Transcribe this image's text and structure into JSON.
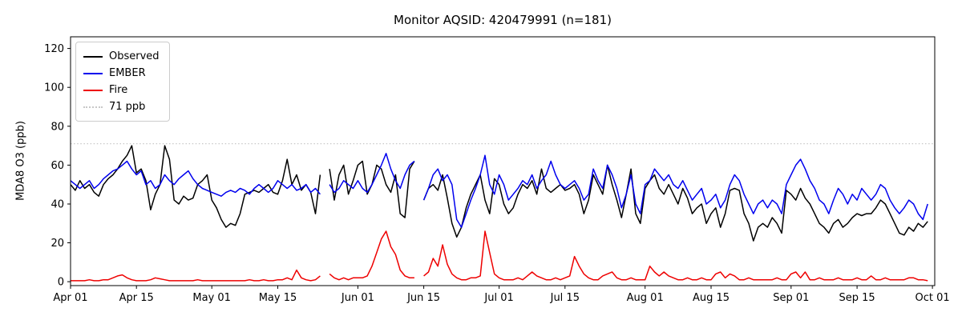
{
  "chart_data": {
    "type": "line",
    "title": "Monitor AQSID: 420479991 (n=181)",
    "xlabel": "",
    "ylabel": "MDA8 O3 (ppb)",
    "ylim": [
      -2,
      126
    ],
    "yticks": [
      0,
      20,
      40,
      60,
      80,
      100,
      120
    ],
    "xlim_days": [
      0,
      183.5
    ],
    "x_description": "daily values, day 0 = Apr 01, day 183 = Oct 01; nulls are missing days (n=181)",
    "xticks": [
      {
        "day": 0,
        "label": "Apr 01"
      },
      {
        "day": 14,
        "label": "Apr 15"
      },
      {
        "day": 30,
        "label": "May 01"
      },
      {
        "day": 44,
        "label": "May 15"
      },
      {
        "day": 61,
        "label": "Jun 01"
      },
      {
        "day": 75,
        "label": "Jun 15"
      },
      {
        "day": 91,
        "label": "Jul 01"
      },
      {
        "day": 105,
        "label": "Jul 15"
      },
      {
        "day": 122,
        "label": "Aug 01"
      },
      {
        "day": 136,
        "label": "Aug 15"
      },
      {
        "day": 153,
        "label": "Sep 01"
      },
      {
        "day": 167,
        "label": "Sep 15"
      },
      {
        "day": 183,
        "label": "Oct 01"
      }
    ],
    "reference_line": {
      "value": 71,
      "label": "71 ppb",
      "color": "#c8c8c8",
      "style": "dotted"
    },
    "grid": "off",
    "legend_position": "upper-left",
    "legend": [
      {
        "label": "Observed",
        "color": "#000000",
        "style": "solid"
      },
      {
        "label": "EMBER",
        "color": "#0000ee",
        "style": "solid"
      },
      {
        "label": "Fire",
        "color": "#ee0000",
        "style": "solid"
      },
      {
        "label": "71 ppb",
        "color": "#c8c8c8",
        "style": "dotted"
      }
    ],
    "series": [
      {
        "name": "Observed",
        "color": "#000000",
        "values": [
          50,
          47,
          52,
          48,
          50,
          46,
          44,
          50,
          53,
          55,
          58,
          62,
          65,
          70,
          56,
          58,
          52,
          37,
          45,
          50,
          70,
          63,
          42,
          40,
          44,
          42,
          43,
          50,
          52,
          55,
          42,
          38,
          32,
          28,
          30,
          29,
          35,
          45,
          46,
          47,
          46,
          48,
          50,
          46,
          45,
          52,
          63,
          50,
          55,
          47,
          50,
          46,
          35,
          55,
          null,
          58,
          42,
          55,
          60,
          45,
          52,
          60,
          62,
          45,
          50,
          60,
          58,
          50,
          46,
          55,
          35,
          33,
          58,
          62,
          null,
          42,
          48,
          50,
          47,
          55,
          43,
          30,
          23,
          28,
          38,
          45,
          50,
          55,
          42,
          35,
          53,
          50,
          40,
          35,
          38,
          45,
          50,
          48,
          52,
          45,
          58,
          48,
          46,
          48,
          50,
          47,
          48,
          50,
          45,
          35,
          42,
          55,
          50,
          45,
          60,
          50,
          42,
          33,
          45,
          58,
          35,
          30,
          48,
          52,
          55,
          48,
          45,
          50,
          45,
          40,
          48,
          43,
          35,
          38,
          40,
          30,
          35,
          38,
          28,
          35,
          47,
          48,
          47,
          35,
          30,
          21,
          28,
          30,
          28,
          33,
          30,
          25,
          47,
          45,
          42,
          48,
          43,
          40,
          35,
          30,
          28,
          25,
          30,
          32,
          28,
          30,
          33,
          35,
          34,
          35,
          35,
          38,
          42,
          40,
          35,
          30,
          25,
          24,
          28,
          26,
          30,
          28,
          31
        ]
      },
      {
        "name": "EMBER",
        "color": "#0000ee",
        "values": [
          52,
          50,
          48,
          50,
          52,
          48,
          50,
          53,
          55,
          57,
          58,
          60,
          62,
          58,
          55,
          57,
          50,
          52,
          48,
          50,
          55,
          52,
          50,
          53,
          55,
          57,
          53,
          50,
          48,
          47,
          46,
          45,
          44,
          46,
          47,
          46,
          48,
          47,
          45,
          48,
          50,
          48,
          46,
          48,
          52,
          50,
          48,
          50,
          47,
          48,
          50,
          46,
          48,
          45,
          null,
          50,
          46,
          48,
          52,
          50,
          48,
          52,
          48,
          46,
          50,
          55,
          60,
          66,
          58,
          52,
          48,
          55,
          60,
          62,
          null,
          42,
          48,
          55,
          58,
          52,
          55,
          50,
          32,
          28,
          35,
          42,
          48,
          55,
          65,
          50,
          45,
          55,
          50,
          42,
          45,
          48,
          52,
          50,
          55,
          48,
          52,
          55,
          62,
          55,
          50,
          48,
          50,
          52,
          48,
          42,
          45,
          58,
          52,
          48,
          60,
          55,
          48,
          38,
          45,
          55,
          40,
          35,
          50,
          52,
          58,
          55,
          52,
          55,
          50,
          48,
          52,
          47,
          42,
          45,
          48,
          40,
          42,
          45,
          38,
          42,
          50,
          55,
          52,
          45,
          40,
          35,
          40,
          42,
          38,
          42,
          40,
          35,
          50,
          55,
          60,
          63,
          58,
          52,
          48,
          42,
          40,
          35,
          42,
          48,
          45,
          40,
          45,
          42,
          48,
          45,
          42,
          45,
          50,
          48,
          42,
          38,
          35,
          38,
          42,
          40,
          35,
          32,
          40
        ]
      },
      {
        "name": "Fire",
        "color": "#ee0000",
        "values": [
          0.5,
          0.5,
          0.5,
          0.5,
          1,
          0.5,
          0.5,
          1,
          1,
          2,
          3,
          3.5,
          2,
          1,
          0.5,
          0.5,
          0.5,
          1,
          2,
          1.5,
          1,
          0.5,
          0.5,
          0.5,
          0.5,
          0.5,
          0.5,
          1,
          0.5,
          0.5,
          0.5,
          0.5,
          0.5,
          0.5,
          0.5,
          0.5,
          0.5,
          0.5,
          1,
          0.5,
          0.5,
          1,
          0.5,
          0.5,
          1,
          1,
          2,
          1,
          6,
          2,
          1,
          0.5,
          1,
          3,
          null,
          4,
          2,
          1,
          2,
          1,
          2,
          2,
          2,
          3,
          8,
          15,
          22,
          26,
          18,
          14,
          6,
          3,
          2,
          2,
          null,
          3,
          5,
          12,
          8,
          19,
          9,
          4,
          2,
          1,
          1,
          2,
          2,
          3,
          26,
          15,
          4,
          2,
          1,
          1,
          1,
          2,
          1,
          3,
          5,
          3,
          2,
          1,
          1,
          2,
          1,
          2,
          3,
          13,
          8,
          4,
          2,
          1,
          1,
          3,
          4,
          5,
          2,
          1,
          1,
          2,
          1,
          1,
          1,
          8,
          5,
          3,
          5,
          3,
          2,
          1,
          1,
          2,
          1,
          1,
          2,
          1,
          1,
          4,
          5,
          2,
          4,
          3,
          1,
          1,
          2,
          1,
          1,
          1,
          1,
          1,
          2,
          1,
          1,
          4,
          5,
          2,
          5,
          1,
          1,
          2,
          1,
          1,
          1,
          2,
          1,
          1,
          1,
          2,
          1,
          1,
          3,
          1,
          1,
          2,
          1,
          1,
          1,
          1,
          2,
          2,
          1,
          1,
          0.5
        ]
      }
    ]
  }
}
